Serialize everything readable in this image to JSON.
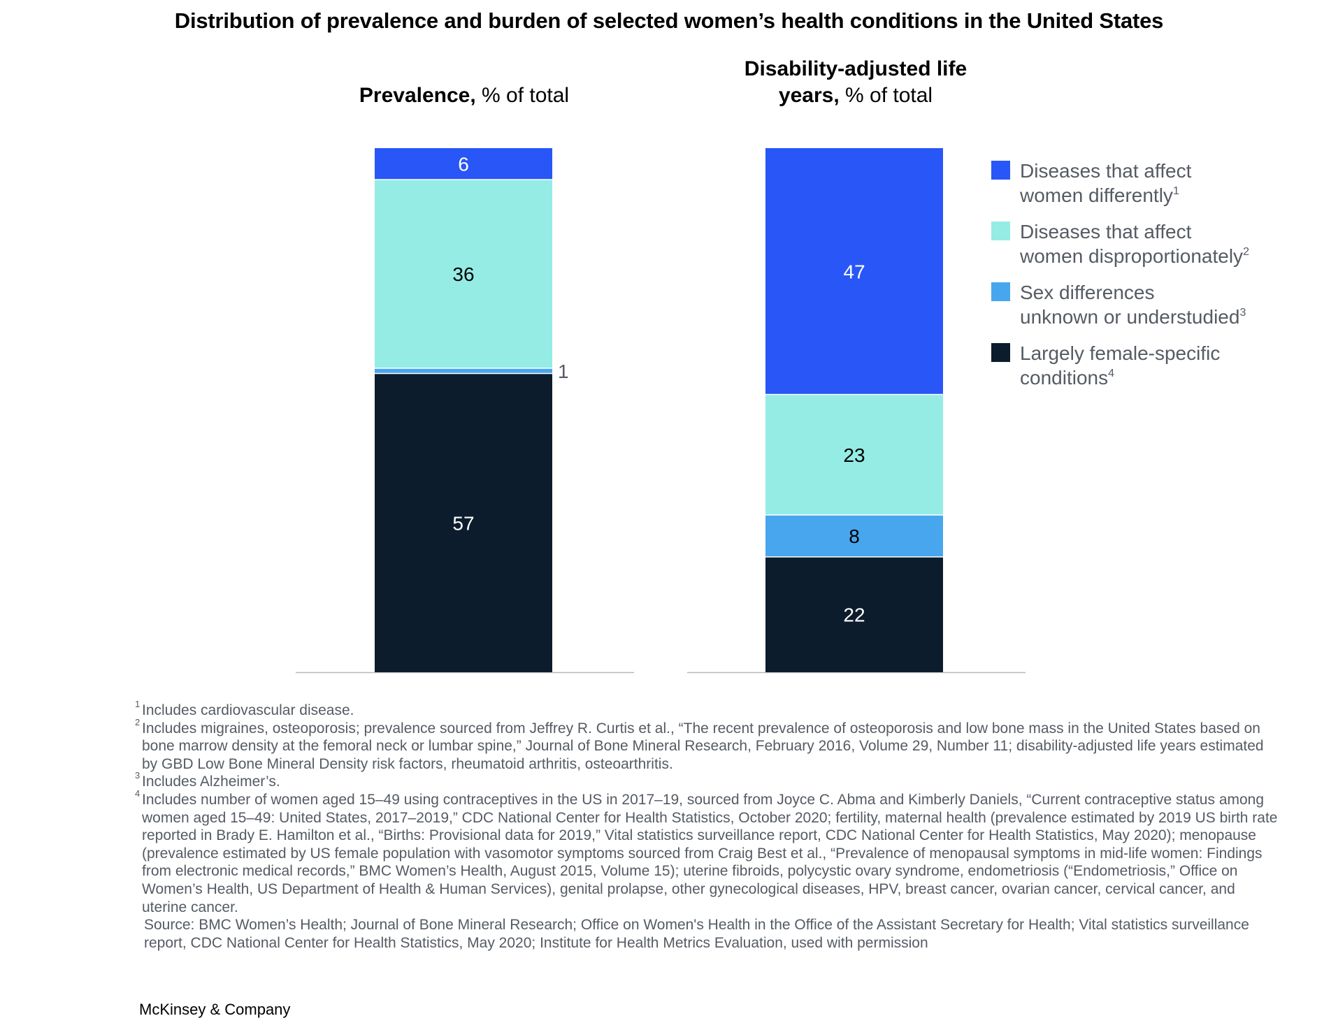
{
  "title": "Distribution of prevalence and burden of selected women’s health conditions in the United States",
  "chart_data": {
    "type": "bar",
    "stacked": true,
    "categories": [
      "Prevalence, % of total",
      "Disability-adjusted life years, % of total"
    ],
    "panels": [
      {
        "title_bold": "Prevalence,",
        "title_rest": "% of total",
        "title_lines": [
          [
            {
              "b": "Prevalence,",
              "r": " % of total"
            }
          ]
        ]
      },
      {
        "title_bold": "Disability-adjusted life years,",
        "title_rest": "% of total",
        "title_lines": [
          [
            {
              "b": "Disability-adjusted life",
              "r": ""
            }
          ],
          [
            {
              "b": "years,",
              "r": " % of total"
            }
          ]
        ]
      }
    ],
    "series": [
      {
        "name": "Largely female-specific conditions",
        "footnote": "4",
        "color": "#0c1c2c",
        "label_color": "#ffffff",
        "values": [
          57,
          22
        ]
      },
      {
        "name": "Sex differences unknown or understudied",
        "footnote": "3",
        "color": "#48a6ee",
        "label_color": "#000000",
        "values": [
          1,
          8
        ]
      },
      {
        "name": "Diseases that affect women disproportionately",
        "footnote": "2",
        "color": "#95ece5",
        "label_color": "#000000",
        "values": [
          36,
          23
        ]
      },
      {
        "name": "Diseases that affect women differently",
        "footnote": "1",
        "color": "#2856f7",
        "label_color": "#ffffff",
        "values": [
          6,
          47
        ]
      }
    ],
    "legend": {
      "position": "right",
      "items": [
        {
          "lines": [
            "Diseases that affect",
            "women differently"
          ],
          "sup": "1",
          "color": "#2856f7"
        },
        {
          "lines": [
            "Diseases that affect",
            "women disproportionately"
          ],
          "sup": "2",
          "color": "#95ece5"
        },
        {
          "lines": [
            "Sex differences",
            "unknown or understudied"
          ],
          "sup": "3",
          "color": "#48a6ee"
        },
        {
          "lines": [
            "Largely female-specific",
            "conditions"
          ],
          "sup": "4",
          "color": "#0c1c2c"
        }
      ]
    },
    "ylim": [
      0,
      100
    ],
    "grid": false
  },
  "footnotes": [
    {
      "mark": "1",
      "text": "Includes cardiovascular disease."
    },
    {
      "mark": "2",
      "text": "Includes migraines, osteoporosis; prevalence sourced from Jeffrey R. Curtis et al., “The recent prevalence of osteoporosis and low bone mass in the United States based on bone marrow density at the femoral neck or lumbar spine,” Journal of Bone Mineral Research, February 2016, Volume 29, Number 11; disability-adjusted life years estimated by GBD Low Bone Mineral Density risk factors, rheumatoid arthritis, osteoarthritis."
    },
    {
      "mark": "3",
      "text": "Includes Alzheimer’s."
    },
    {
      "mark": "4",
      "text": "Includes number of women aged 15–49 using contraceptives in the US in 2017–19, sourced from Joyce C. Abma and Kimberly Daniels, “Current contraceptive status among women aged 15–49: United States, 2017–2019,” CDC National Center for Health Statistics, October 2020; fertility, maternal health (prevalence estimated by 2019 US birth rate reported in Brady E. Hamilton et al., “Births: Provisional data for 2019,” Vital statistics surveillance report, CDC National Center for Health Statistics, May 2020); menopause (prevalence estimated by US female population with vasomotor symptoms sourced from Craig Best et al., “Prevalence of menopausal symptoms in mid-life women: Findings from electronic medical records,” BMC Women’s Health, August 2015, Volume 15); uterine fibroids, polycystic ovary syndrome, endometriosis (“Endometriosis,” Office on Women’s Health, US Department of Health & Human Services), genital prolapse, other gynecological diseases, HPV, breast cancer, ovarian cancer, cervical cancer, and uterine cancer."
    }
  ],
  "source": "Source: BMC Women’s Health; Journal of Bone Mineral Research; Office on Women's Health in the Office of the Assistant Secretary for Health; Vital statistics surveillance report, CDC National Center for Health Statistics, May 2020; Institute for Health Metrics Evaluation, used with permission",
  "brand": "McKinsey & Company"
}
